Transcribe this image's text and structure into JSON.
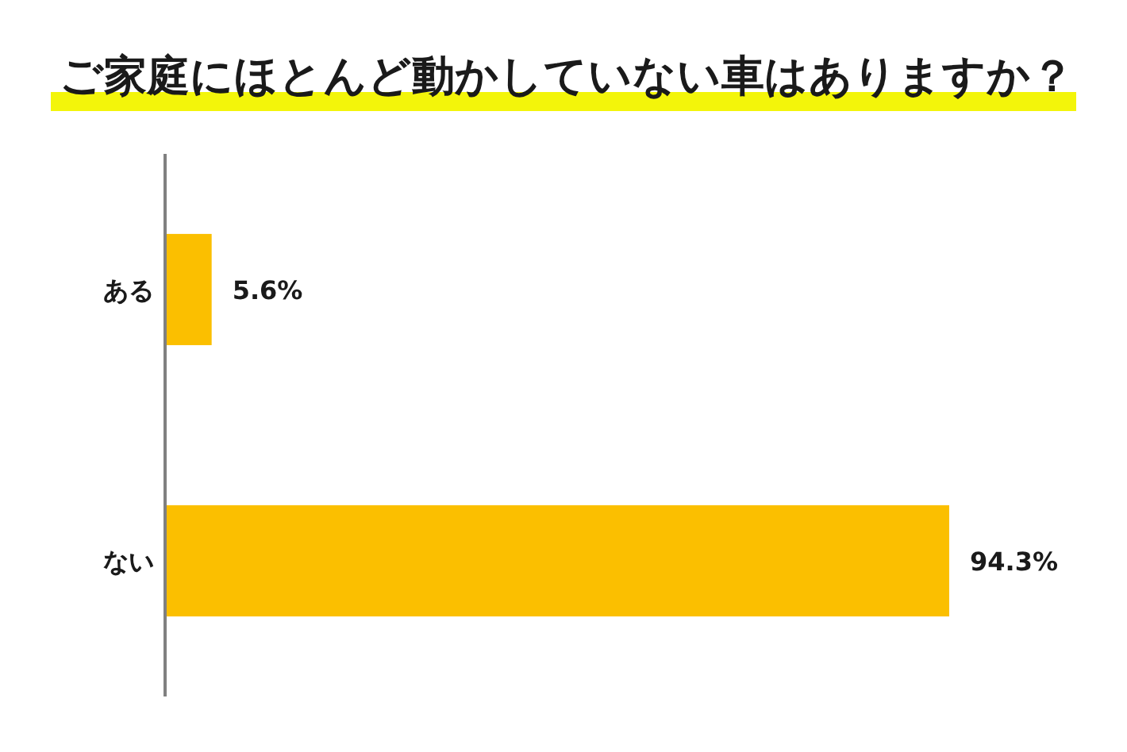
{
  "chart_data": {
    "type": "bar",
    "orientation": "horizontal",
    "title": "ご家庭にほとんど動かしていない車はありますか？",
    "categories": [
      "ある",
      "ない"
    ],
    "values": [
      5.6,
      94.3
    ],
    "color": "#fbbf00",
    "value_labels": [
      "5.6%",
      "94.3%"
    ],
    "tick_labels": "y"
  }
}
